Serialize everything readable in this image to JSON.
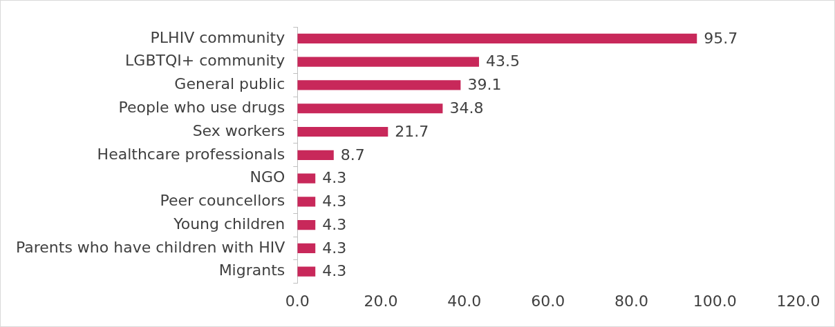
{
  "chart_data": {
    "type": "bar",
    "orientation": "horizontal",
    "categories": [
      "PLHIV community",
      "LGBTQI+ community",
      "General public",
      "People who use drugs",
      "Sex workers",
      "Healthcare professionals",
      "NGO",
      "Peer councellors",
      "Young children",
      "Parents who have children with HIV",
      "Migrants"
    ],
    "values": [
      95.7,
      43.5,
      39.1,
      34.8,
      21.7,
      8.7,
      4.3,
      4.3,
      4.3,
      4.3,
      4.3
    ],
    "color": "#c8285a",
    "xlim": [
      0,
      120
    ],
    "xticks": [
      {
        "value": 0,
        "label": "0.0"
      },
      {
        "value": 20,
        "label": "20.0"
      },
      {
        "value": 40,
        "label": "40.0"
      },
      {
        "value": 60,
        "label": "60.0"
      },
      {
        "value": 80,
        "label": "80.0"
      },
      {
        "value": 100,
        "label": "100.0"
      },
      {
        "value": 120,
        "label": "120.0"
      }
    ],
    "data_labels": true,
    "grid": false,
    "legend": false
  }
}
